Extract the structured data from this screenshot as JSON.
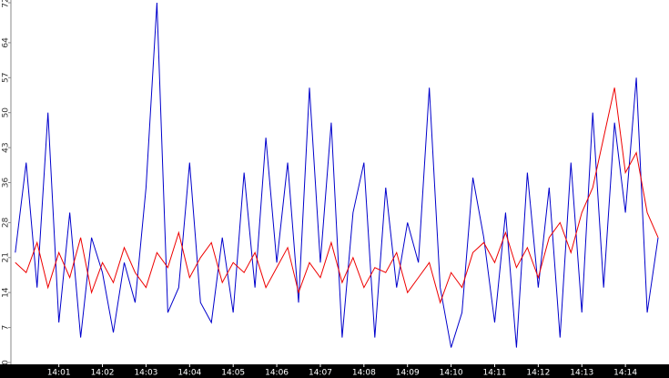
{
  "chart_data": {
    "type": "line",
    "x": [
      0,
      0.25,
      0.5,
      0.75,
      1,
      1.25,
      1.5,
      1.75,
      2,
      2.25,
      2.5,
      2.75,
      3,
      3.25,
      3.5,
      3.75,
      4,
      4.25,
      4.5,
      4.75,
      5,
      5.25,
      5.5,
      5.75,
      6,
      6.25,
      6.5,
      6.75,
      7,
      7.25,
      7.5,
      7.75,
      8,
      8.25,
      8.5,
      8.75,
      9,
      9.25,
      9.5,
      9.75,
      10,
      10.25,
      10.5,
      10.75,
      11,
      11.25,
      11.5,
      11.75,
      12,
      12.25,
      12.5,
      12.75,
      13,
      13.25,
      13.5,
      13.75,
      14,
      14.25,
      14.5,
      14.75
    ],
    "series": [
      {
        "color": "#0000cc",
        "values": [
          22,
          40,
          15,
          50,
          8,
          30,
          5,
          25,
          18,
          6,
          20,
          12,
          35,
          72,
          10,
          15,
          40,
          12,
          8,
          25,
          10,
          38,
          15,
          45,
          20,
          40,
          12,
          55,
          20,
          48,
          5,
          30,
          40,
          5,
          35,
          15,
          28,
          20,
          55,
          15,
          3,
          10,
          37,
          25,
          8,
          30,
          3,
          38,
          15,
          35,
          5,
          40,
          10,
          50,
          15,
          48,
          30,
          57,
          10,
          25
        ]
      },
      {
        "color": "#ee0000",
        "values": [
          20,
          18,
          24,
          15,
          22,
          17,
          25,
          14,
          20,
          16,
          23,
          18,
          15,
          22,
          19,
          26,
          17,
          21,
          24,
          16,
          20,
          18,
          22,
          15,
          19,
          23,
          14,
          20,
          17,
          24,
          16,
          21,
          15,
          19,
          18,
          22,
          14,
          17,
          20,
          12,
          18,
          15,
          22,
          24,
          20,
          26,
          19,
          23,
          17,
          25,
          28,
          22,
          30,
          35,
          45,
          55,
          38,
          42,
          30,
          25
        ]
      }
    ],
    "xlim": [
      -0.1,
      15.0
    ],
    "xticks": [
      {
        "value": 1,
        "label": "14:01"
      },
      {
        "value": 2,
        "label": "14:02"
      },
      {
        "value": 3,
        "label": "14:03"
      },
      {
        "value": 4,
        "label": "14:04"
      },
      {
        "value": 5,
        "label": "14:05"
      },
      {
        "value": 6,
        "label": "14:06"
      },
      {
        "value": 7,
        "label": "14:07"
      },
      {
        "value": 8,
        "label": "14:08"
      },
      {
        "value": 9,
        "label": "14:09"
      },
      {
        "value": 10,
        "label": "14:10"
      },
      {
        "value": 11,
        "label": "14:11"
      },
      {
        "value": 12,
        "label": "14:12"
      },
      {
        "value": 13,
        "label": "14:13"
      },
      {
        "value": 14,
        "label": "14:14"
      }
    ],
    "ylim": [
      0,
      72
    ],
    "yticks": [
      0,
      7,
      14,
      21,
      28,
      36,
      43,
      50,
      57,
      64,
      72
    ]
  }
}
